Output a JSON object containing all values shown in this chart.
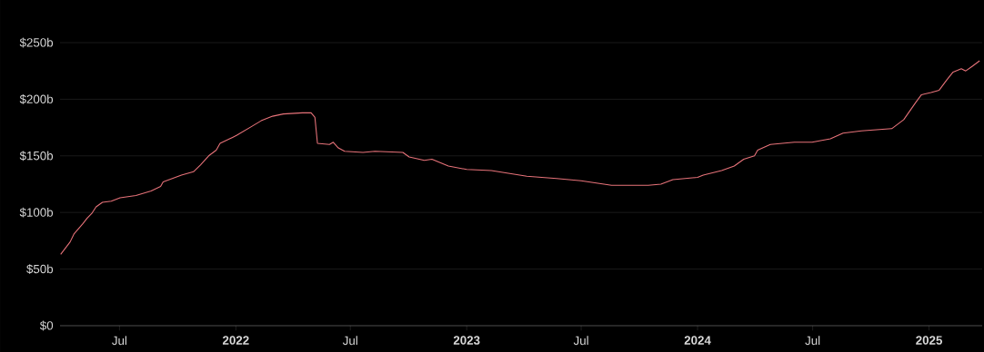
{
  "chart_data": {
    "type": "line",
    "color": "#e8737a",
    "grid": "y",
    "marker": "none",
    "line_style": "solid",
    "xlim": [
      "2021-03-29",
      "2025-03-26"
    ],
    "ylim": [
      0,
      250
    ],
    "xticks": [
      {
        "value": "2021-07-01",
        "label": "Jul"
      },
      {
        "value": "2022-01-01",
        "label": "2022"
      },
      {
        "value": "2022-07-01",
        "label": "Jul"
      },
      {
        "value": "2023-01-01",
        "label": "2023"
      },
      {
        "value": "2023-07-01",
        "label": "Jul"
      },
      {
        "value": "2024-01-01",
        "label": "2024"
      },
      {
        "value": "2024-07-01",
        "label": "Jul"
      },
      {
        "value": "2025-01-01",
        "label": "2025"
      }
    ],
    "yticks": [
      {
        "value": 0,
        "label": "$0"
      },
      {
        "value": 50,
        "label": "$50b"
      },
      {
        "value": 100,
        "label": "$100b"
      },
      {
        "value": 150,
        "label": "$150b"
      },
      {
        "value": 200,
        "label": "$200b"
      },
      {
        "value": 250,
        "label": "$250b"
      }
    ],
    "x": [
      "2021-03-30",
      "2021-04-14",
      "2021-04-20",
      "2021-05-04",
      "2021-05-11",
      "2021-05-18",
      "2021-05-25",
      "2021-06-04",
      "2021-06-18",
      "2021-07-02",
      "2021-07-27",
      "2021-08-20",
      "2021-09-04",
      "2021-09-08",
      "2021-10-07",
      "2021-10-26",
      "2021-11-06",
      "2021-11-19",
      "2021-12-01",
      "2021-12-07",
      "2021-12-22",
      "2022-01-02",
      "2022-01-26",
      "2022-02-10",
      "2022-02-28",
      "2022-03-17",
      "2022-04-16",
      "2022-04-30",
      "2022-05-06",
      "2022-05-10",
      "2022-05-29",
      "2022-06-04",
      "2022-06-12",
      "2022-06-22",
      "2022-07-21",
      "2022-08-09",
      "2022-09-22",
      "2022-10-02",
      "2022-10-26",
      "2022-11-07",
      "2022-12-03",
      "2023-01-01",
      "2023-02-09",
      "2023-04-06",
      "2023-05-23",
      "2023-07-01",
      "2023-08-18",
      "2023-10-15",
      "2023-11-04",
      "2023-11-23",
      "2024-01-01",
      "2024-01-10",
      "2024-02-08",
      "2024-02-28",
      "2024-03-14",
      "2024-03-31",
      "2024-04-05",
      "2024-04-25",
      "2024-06-02",
      "2024-06-30",
      "2024-07-29",
      "2024-08-18",
      "2024-09-16",
      "2024-11-03",
      "2024-11-22",
      "2024-12-12",
      "2024-12-20",
      "2025-01-04",
      "2025-01-17",
      "2025-01-29",
      "2025-02-08",
      "2025-02-21",
      "2025-02-28",
      "2025-03-10",
      "2025-03-22"
    ],
    "values": [
      63,
      74,
      81,
      90,
      95,
      99,
      105,
      109,
      110,
      113,
      115,
      119,
      123,
      127,
      133,
      136,
      142,
      150,
      155,
      161,
      165,
      168,
      176,
      181,
      185,
      187,
      188,
      188,
      184,
      161,
      160,
      162,
      157,
      154,
      153,
      154,
      153,
      149,
      146,
      147,
      141,
      138,
      137,
      132,
      130,
      128,
      124,
      124,
      125,
      129,
      131,
      133,
      137,
      141,
      147,
      150,
      155,
      160,
      162,
      162,
      165,
      170,
      172,
      174,
      182,
      198,
      204,
      206,
      208,
      217,
      224,
      227,
      225,
      229,
      234
    ]
  }
}
